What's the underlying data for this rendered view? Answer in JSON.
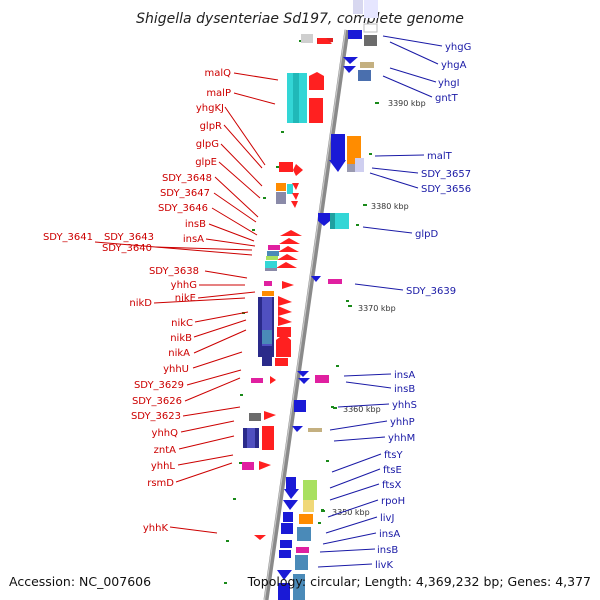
{
  "title": "Shigella dysenteriae Sd197, complete genome",
  "accession": "Accession: NC_007606",
  "topology": "Topology: circular; Length: 4,369,232 bp; Genes: 4,377",
  "colors": {
    "forward_label": "#cc0000",
    "reverse_label": "#1a1aa6",
    "backbone": "#8a8a8a",
    "tick": "#1a8a1a"
  },
  "ticks": [
    "3390 kbp",
    "3380 kbp",
    "3370 kbp",
    "3360 kbp",
    "3350 kbp"
  ],
  "left_labels": [
    "malQ",
    "malP",
    "yhgKJ",
    "glpR",
    "glpG",
    "glpE",
    "SDY_3648",
    "SDY_3647",
    "SDY_3646",
    "insB",
    "insA",
    "SDY_3641",
    "SDY_3643",
    "SDY_3640",
    "SDY_3638",
    "yhhG",
    "nikE",
    "nikD",
    "nikC",
    "nikB",
    "nikA",
    "yhhU",
    "SDY_3629",
    "SDY_3626",
    "SDY_3623",
    "yhhQ",
    "zntA",
    "yhhL",
    "rsmD",
    "yhhK"
  ],
  "right_labels": [
    "yhgG",
    "yhgA",
    "yhgI",
    "gntT",
    "malT",
    "SDY_3657",
    "SDY_3656",
    "glpD",
    "SDY_3639",
    "insA",
    "insB",
    "yhhS",
    "yhhP",
    "yhhM",
    "ftsY",
    "ftsE",
    "ftsX",
    "rpoH",
    "livJ",
    "insA",
    "insB",
    "livK"
  ]
}
